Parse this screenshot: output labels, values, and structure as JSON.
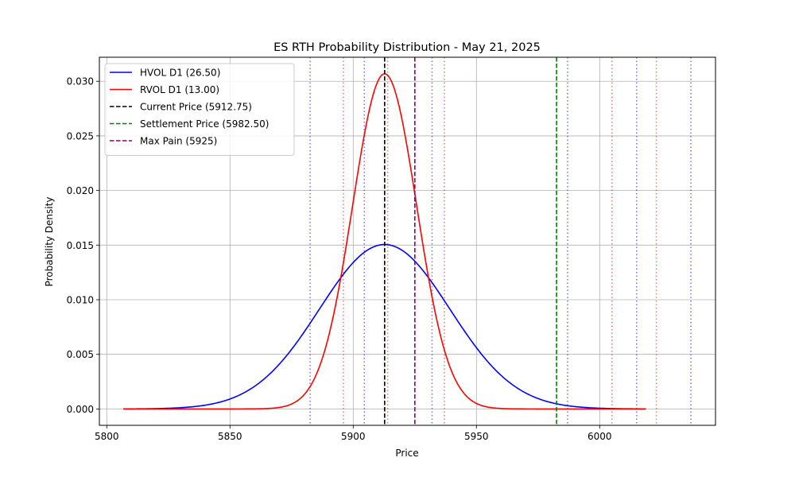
{
  "chart_data": {
    "type": "line",
    "title": "ES RTH Probability Distribution - May 21, 2025",
    "xlabel": "Price",
    "ylabel": "Probability Density",
    "xlim": [
      5797,
      6047
    ],
    "ylim": [
      -0.0015,
      0.0322
    ],
    "xticks": [
      5800,
      5850,
      5900,
      5950,
      6000
    ],
    "xtick_labels": [
      "5800",
      "5850",
      "5900",
      "5950",
      "6000"
    ],
    "yticks": [
      0.0,
      0.005,
      0.01,
      0.015,
      0.02,
      0.025,
      0.03
    ],
    "ytick_labels": [
      "0.000",
      "0.005",
      "0.010",
      "0.015",
      "0.020",
      "0.025",
      "0.030"
    ],
    "grid": true,
    "legend_position": "upper-left",
    "series": [
      {
        "name": "HVOL D1 (26.50)",
        "kind": "normal-density",
        "mean": 5912.75,
        "std": 26.5,
        "x_range": [
          5806.75,
          6018.75
        ],
        "color": "#0000ff"
      },
      {
        "name": "RVOL D1 (13.00)",
        "kind": "normal-density",
        "mean": 5912.75,
        "std": 13.0,
        "x_range": [
          5806.75,
          6018.75
        ],
        "color": "#ff0000"
      }
    ],
    "markers": [
      {
        "name": "Current Price (5912.75)",
        "x": 5912.75,
        "color": "#000000",
        "style": "dashed"
      },
      {
        "name": "Settlement Price (5982.50)",
        "x": 5982.5,
        "color": "#008000",
        "style": "dashed"
      },
      {
        "name": "Max Pain (5925)",
        "x": 5925,
        "color": "#800080",
        "style": "dashed"
      }
    ],
    "reference_lines": [
      {
        "x": 5882.5,
        "color": "#0000ff",
        "style": "dotted"
      },
      {
        "x": 5904.5,
        "color": "#0000ff",
        "style": "dotted"
      },
      {
        "x": 5932.0,
        "color": "#0000ff",
        "style": "dotted"
      },
      {
        "x": 5987.0,
        "color": "#0000ff",
        "style": "dotted"
      },
      {
        "x": 6015.0,
        "color": "#0000ff",
        "style": "dotted"
      },
      {
        "x": 6037.0,
        "color": "#0000ff",
        "style": "dotted"
      },
      {
        "x": 5896.0,
        "color": "#ff0000",
        "style": "dotted"
      },
      {
        "x": 5914.0,
        "color": "#ff0000",
        "style": "dotted"
      },
      {
        "x": 5937.0,
        "color": "#ff0000",
        "style": "dotted"
      },
      {
        "x": 6005.0,
        "color": "#ff0000",
        "style": "dotted"
      },
      {
        "x": 6023.0,
        "color": "#ff0000",
        "style": "dotted"
      }
    ]
  }
}
